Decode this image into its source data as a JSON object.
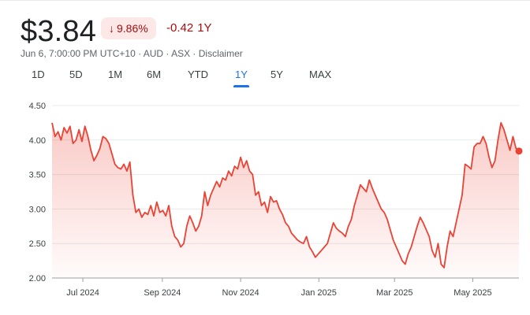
{
  "quote": {
    "price": "$3.84",
    "change_percent": "9.86%",
    "change_arrow": "↓",
    "change_abs": "-0.42",
    "change_period": "1Y",
    "meta": "Jun 6, 7:00:00 PM UTC+10 · AUD · ASX · Disclaimer"
  },
  "tabs": [
    {
      "label": "1D"
    },
    {
      "label": "5D"
    },
    {
      "label": "1M"
    },
    {
      "label": "6M"
    },
    {
      "label": "YTD"
    },
    {
      "label": "1Y",
      "active": true
    },
    {
      "label": "5Y"
    },
    {
      "label": "MAX"
    }
  ],
  "colors": {
    "line": "#ea4335",
    "negative": "#a50e0e",
    "accent": "#1a73e8"
  },
  "chart_data": {
    "type": "area",
    "ylim": [
      2.0,
      4.5
    ],
    "yticks": [
      "4.50",
      "4.00",
      "3.50",
      "3.00",
      "2.50",
      "2.00"
    ],
    "xticks": [
      "Jul 2024",
      "Sep 2024",
      "Nov 2024",
      "Jan 2025",
      "Mar 2025",
      "May 2025"
    ],
    "grid": true,
    "series": [
      {
        "x_start": "2024-06-07",
        "x_end": "2025-06-06",
        "values": [
          4.25,
          4.05,
          4.12,
          4.0,
          4.18,
          4.1,
          4.2,
          3.95,
          4.0,
          4.15,
          3.98,
          4.2,
          4.05,
          3.85,
          3.7,
          3.78,
          3.88,
          4.05,
          4.02,
          3.95,
          3.8,
          3.65,
          3.6,
          3.58,
          3.65,
          3.55,
          3.68,
          3.2,
          2.95,
          3.0,
          2.88,
          2.95,
          2.92,
          3.05,
          2.9,
          3.1,
          2.95,
          2.98,
          2.9,
          3.05,
          2.75,
          2.6,
          2.55,
          2.45,
          2.5,
          2.75,
          2.9,
          2.8,
          2.68,
          2.75,
          2.9,
          3.25,
          3.05,
          3.2,
          3.3,
          3.4,
          3.32,
          3.45,
          3.42,
          3.55,
          3.48,
          3.62,
          3.58,
          3.75,
          3.6,
          3.7,
          3.55,
          3.5,
          3.2,
          3.25,
          3.05,
          3.1,
          2.95,
          3.18,
          3.1,
          3.12,
          3.0,
          2.92,
          2.8,
          2.75,
          2.65,
          2.6,
          2.55,
          2.52,
          2.5,
          2.6,
          2.45,
          2.38,
          2.3,
          2.35,
          2.4,
          2.45,
          2.5,
          2.65,
          2.8,
          2.72,
          2.68,
          2.65,
          2.6,
          2.75,
          2.85,
          3.05,
          3.2,
          3.35,
          3.3,
          3.25,
          3.42,
          3.3,
          3.2,
          3.1,
          3.0,
          2.95,
          2.85,
          2.7,
          2.55,
          2.45,
          2.35,
          2.25,
          2.2,
          2.35,
          2.45,
          2.6,
          2.75,
          2.88,
          2.8,
          2.7,
          2.6,
          2.4,
          2.3,
          2.5,
          2.2,
          2.15,
          2.45,
          2.68,
          2.6,
          2.8,
          3.0,
          3.2,
          3.65,
          3.62,
          3.58,
          3.9,
          3.95,
          3.95,
          4.05,
          3.95,
          3.75,
          3.6,
          3.7,
          4.0,
          4.25,
          4.15,
          4.0,
          3.85,
          4.05,
          3.88,
          3.84
        ]
      }
    ]
  }
}
